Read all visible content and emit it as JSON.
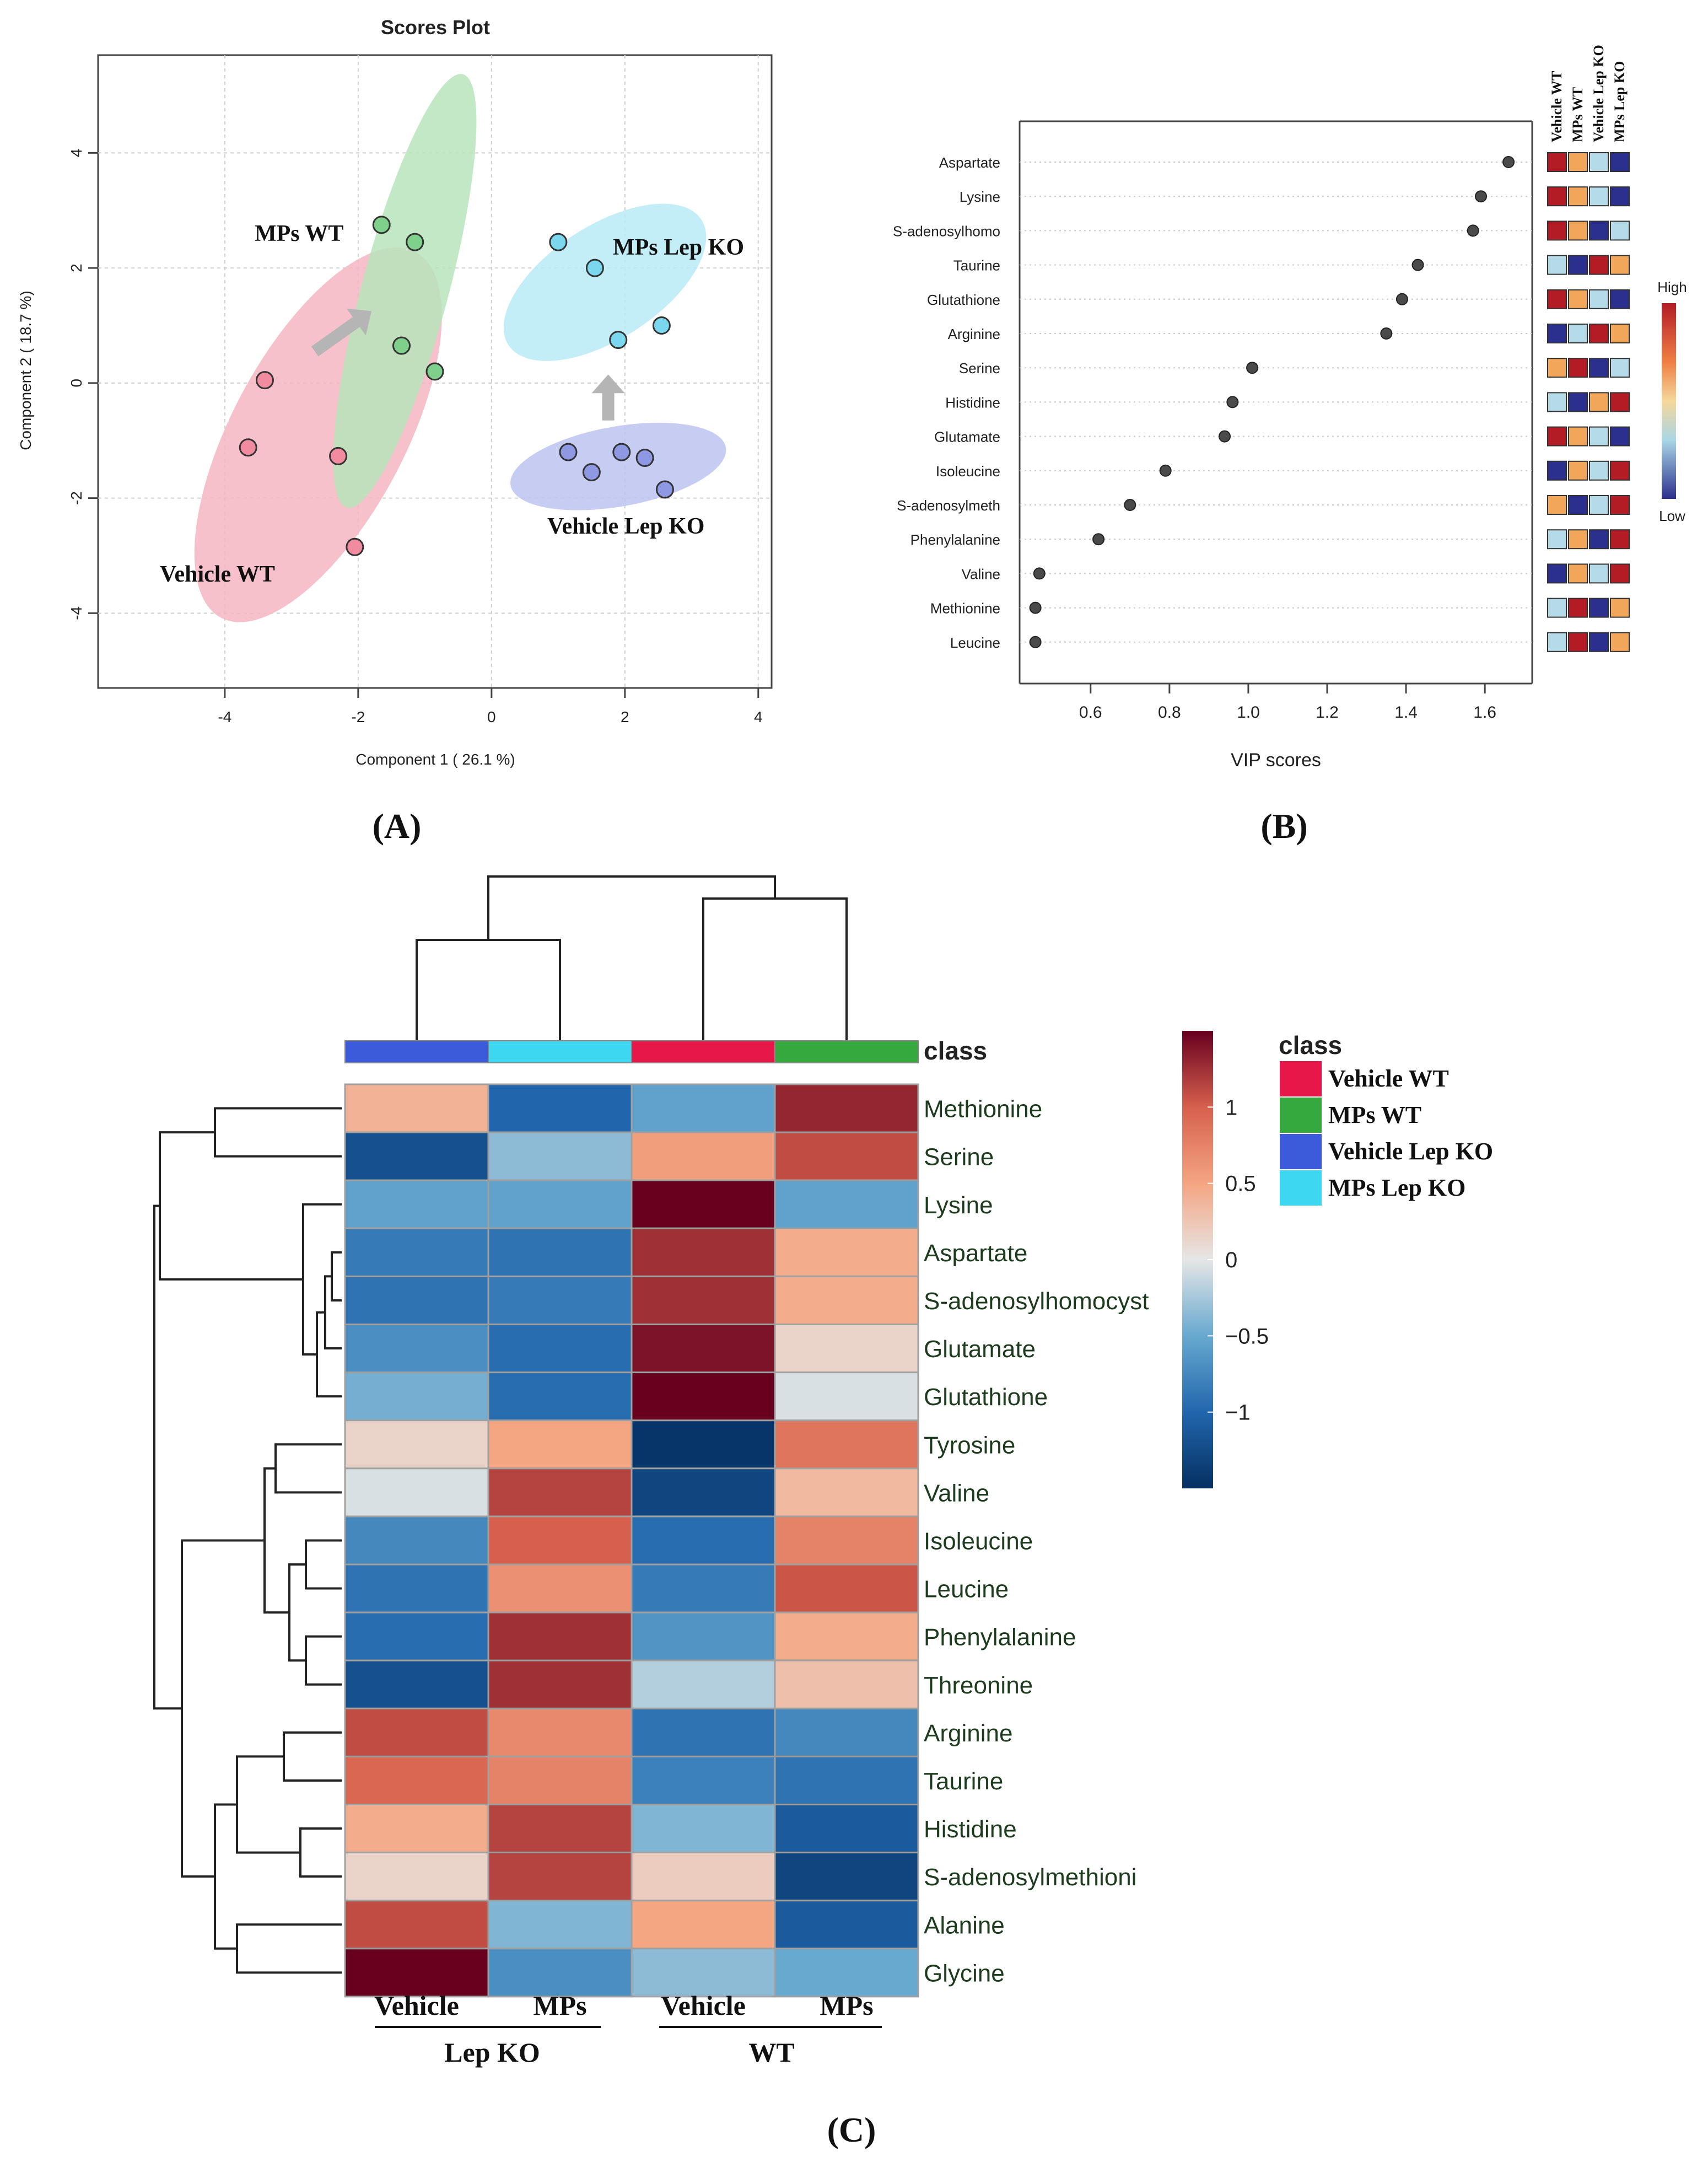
{
  "panels": {
    "a_label": "(A)",
    "b_label": "(B)",
    "c_label": "(C)"
  },
  "chart_data": [
    {
      "panel": "A",
      "type": "scatter",
      "title": "Scores Plot",
      "xlabel": "Component 1 ( 26.1 %)",
      "ylabel": "Component 2 ( 18.7 %)",
      "xlim": [
        -5.9,
        4.2
      ],
      "ylim": [
        -5.3,
        5.7
      ],
      "xticks": [
        -4,
        -2,
        0,
        2,
        4
      ],
      "yticks": [
        -4,
        -2,
        0,
        2,
        4
      ],
      "grid": true,
      "groups": [
        {
          "name": "Vehicle WT",
          "color": "#f08ba0",
          "ellipse_color": "#f4b6c2",
          "points": [
            [
              -3.4,
              0.05
            ],
            [
              -3.65,
              -1.12
            ],
            [
              -2.3,
              -1.27
            ],
            [
              -2.05,
              -2.85
            ]
          ],
          "ellipse": {
            "cx": -2.6,
            "cy": -0.9,
            "rx": 3.6,
            "ry": 1.3,
            "angle_deg": -62
          }
        },
        {
          "name": "MPs WT",
          "color": "#7fd08a",
          "ellipse_color": "#b9e4bb",
          "points": [
            [
              -1.65,
              2.75
            ],
            [
              -1.15,
              2.45
            ],
            [
              -1.35,
              0.65
            ],
            [
              -0.85,
              0.2
            ]
          ],
          "ellipse": {
            "cx": -1.3,
            "cy": 1.6,
            "rx": 3.9,
            "ry": 0.65,
            "angle_deg": -75
          }
        },
        {
          "name": "MPs Lep KO",
          "color": "#7ad7ee",
          "ellipse_color": "#b8eaf6",
          "points": [
            [
              1.0,
              2.45
            ],
            [
              1.55,
              2.0
            ],
            [
              1.9,
              0.75
            ],
            [
              2.55,
              1.0
            ]
          ],
          "ellipse": {
            "cx": 1.7,
            "cy": 1.75,
            "rx": 2.0,
            "ry": 0.85,
            "angle_deg": -33
          }
        },
        {
          "name": "Vehicle Lep KO",
          "color": "#8e98e3",
          "ellipse_color": "#bcc3f0",
          "points": [
            [
              1.15,
              -1.2
            ],
            [
              1.5,
              -1.55
            ],
            [
              1.95,
              -1.2
            ],
            [
              2.3,
              -1.3
            ],
            [
              2.6,
              -1.85
            ]
          ],
          "ellipse": {
            "cx": 1.9,
            "cy": -1.45,
            "rx": 1.9,
            "ry": 0.6,
            "angle_deg": -10
          }
        }
      ],
      "group_labels": [
        "MPs WT",
        "MPs Lep KO",
        "Vehicle WT",
        "Vehicle Lep KO"
      ],
      "arrows": [
        {
          "from": [
            -2.65,
            0.55
          ],
          "to": [
            -1.8,
            1.25
          ]
        },
        {
          "from": [
            1.75,
            -0.65
          ],
          "to": [
            1.75,
            0.15
          ]
        }
      ]
    },
    {
      "panel": "B",
      "type": "scatter",
      "xlabel": "VIP scores",
      "xlim": [
        0.42,
        1.72
      ],
      "xticks": [
        0.6,
        0.8,
        1.0,
        1.2,
        1.4,
        1.6
      ],
      "xtick_labels": [
        "0.6",
        "0.8",
        "1.0",
        "1.2",
        "1.4",
        "1.6"
      ],
      "features": [
        "Aspartate",
        "Lysine",
        "S-adenosylhomo",
        "Taurine",
        "Glutathione",
        "Arginine",
        "Serine",
        "Histidine",
        "Glutamate",
        "Isoleucine",
        "S-adenosylmeth",
        "Phenylalanine",
        "Valine",
        "Methionine",
        "Leucine"
      ],
      "values": [
        1.66,
        1.59,
        1.57,
        1.43,
        1.39,
        1.35,
        1.01,
        0.96,
        0.94,
        0.79,
        0.7,
        0.62,
        0.47,
        0.46,
        0.46
      ],
      "side_columns": [
        "Vehicle WT",
        "MPs WT",
        "Vehicle Lep KO",
        "MPs Lep KO"
      ],
      "side_levels": [
        [
          4,
          3,
          2,
          1
        ],
        [
          4,
          3,
          2,
          1
        ],
        [
          4,
          3,
          1,
          2
        ],
        [
          2,
          1,
          4,
          3
        ],
        [
          4,
          3,
          2,
          1
        ],
        [
          1,
          2,
          4,
          3
        ],
        [
          3,
          4,
          1,
          2
        ],
        [
          2,
          1,
          3,
          4
        ],
        [
          4,
          3,
          2,
          1
        ],
        [
          1,
          3,
          2,
          4
        ],
        [
          3,
          1,
          2,
          4
        ],
        [
          2,
          3,
          1,
          4
        ],
        [
          1,
          3,
          2,
          4
        ],
        [
          2,
          4,
          1,
          3
        ],
        [
          2,
          4,
          1,
          3
        ]
      ],
      "side_colors": [
        "#2b2f8e",
        "#b5dbe8",
        "#f2a65a",
        "#b31b25"
      ],
      "legend_high": "High",
      "legend_low": "Low"
    },
    {
      "panel": "C",
      "type": "heatmap",
      "columns": [
        "Vehicle Lep KO",
        "MPs Lep KO",
        "Vehicle WT",
        "MPs WT"
      ],
      "column_class_colors": [
        "#3b5bdb",
        "#3ed7f2",
        "#e8174a",
        "#35a83e"
      ],
      "class_header": "class",
      "rows": [
        "Methionine",
        "Serine",
        "Lysine",
        "Aspartate",
        "S-adenosylhomocyst",
        "Glutamate",
        "Glutathione",
        "Tyrosine",
        "Valine",
        "Isoleucine",
        "Leucine",
        "Phenylalanine",
        "Threonine",
        "Arginine",
        "Taurine",
        "Histidine",
        "S-adenosylmethioni",
        "Alanine",
        "Glycine"
      ],
      "values": [
        [
          0.4,
          -1.0,
          -0.55,
          1.3
        ],
        [
          -1.2,
          -0.35,
          0.55,
          1.1
        ],
        [
          -0.55,
          -0.55,
          1.5,
          -0.55
        ],
        [
          -0.85,
          -0.9,
          1.25,
          0.45
        ],
        [
          -0.9,
          -0.85,
          1.25,
          0.45
        ],
        [
          -0.7,
          -0.95,
          1.4,
          0.15
        ],
        [
          -0.45,
          -0.95,
          1.5,
          -0.05
        ],
        [
          0.15,
          0.5,
          -1.45,
          0.85
        ],
        [
          -0.05,
          1.15,
          -1.3,
          0.35
        ],
        [
          -0.75,
          1.0,
          -0.95,
          0.75
        ],
        [
          -0.9,
          0.65,
          -0.85,
          1.05
        ],
        [
          -0.95,
          1.25,
          -0.65,
          0.45
        ],
        [
          -1.2,
          1.25,
          -0.2,
          0.3
        ],
        [
          1.1,
          0.7,
          -0.9,
          -0.75
        ],
        [
          0.95,
          0.75,
          -0.8,
          -0.9
        ],
        [
          0.45,
          1.15,
          -0.4,
          -1.1
        ],
        [
          0.15,
          1.15,
          0.2,
          -1.3
        ],
        [
          1.1,
          -0.4,
          0.5,
          -1.1
        ],
        [
          1.55,
          -0.7,
          -0.35,
          -0.5
        ]
      ],
      "color_scale": {
        "min": -1.5,
        "max": 1.5,
        "ticks": [
          1,
          0.5,
          0,
          -0.5,
          -1
        ],
        "tick_labels": [
          "1",
          "0.5",
          "0",
          "−0.5",
          "−1"
        ]
      },
      "legend_title": "class",
      "legend_items": [
        {
          "label": "Vehicle WT",
          "color": "#e8174a"
        },
        {
          "label": "MPs WT",
          "color": "#35a83e"
        },
        {
          "label": "Vehicle Lep KO",
          "color": "#3b5bdb"
        },
        {
          "label": "MPs Lep KO",
          "color": "#3ed7f2"
        }
      ],
      "bottom_labels": [
        "Vehicle",
        "MPs",
        "Vehicle",
        "MPs"
      ],
      "group_labels": [
        "Lep  KO",
        "WT"
      ]
    }
  ]
}
